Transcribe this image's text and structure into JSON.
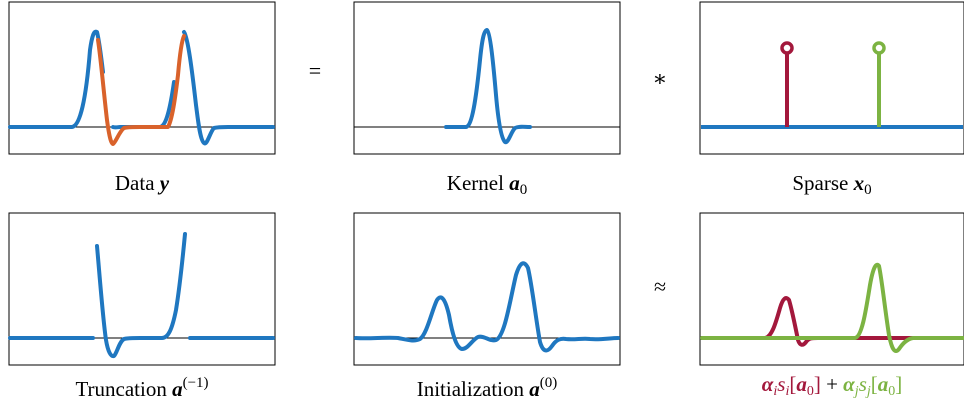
{
  "panels": {
    "data": {
      "label": "Data ",
      "sym": "y"
    },
    "kernel": {
      "label": "Kernel ",
      "sym": "a",
      "sub": "0"
    },
    "sparse": {
      "label": "Sparse ",
      "sym": "x",
      "sub": "0"
    },
    "trunc": {
      "label": "Truncation ",
      "sym": "a",
      "sup": "(−1)"
    },
    "init": {
      "label": "Initialization ",
      "sym": "a",
      "sup": "(0)"
    },
    "approx": {
      "alpha_i": "α",
      "i": "i",
      "s_i": "s",
      "a0": "a",
      "zero": "0",
      "plus": "+",
      "alpha_j": "α",
      "j": "j",
      "s_j": "s"
    }
  },
  "operators": {
    "equals": "=",
    "conv": "∗",
    "approx": "≈"
  },
  "colors": {
    "blue": "#1f77c0",
    "orange": "#d9622b",
    "red": "#a3183c",
    "green": "#7cb342"
  }
}
